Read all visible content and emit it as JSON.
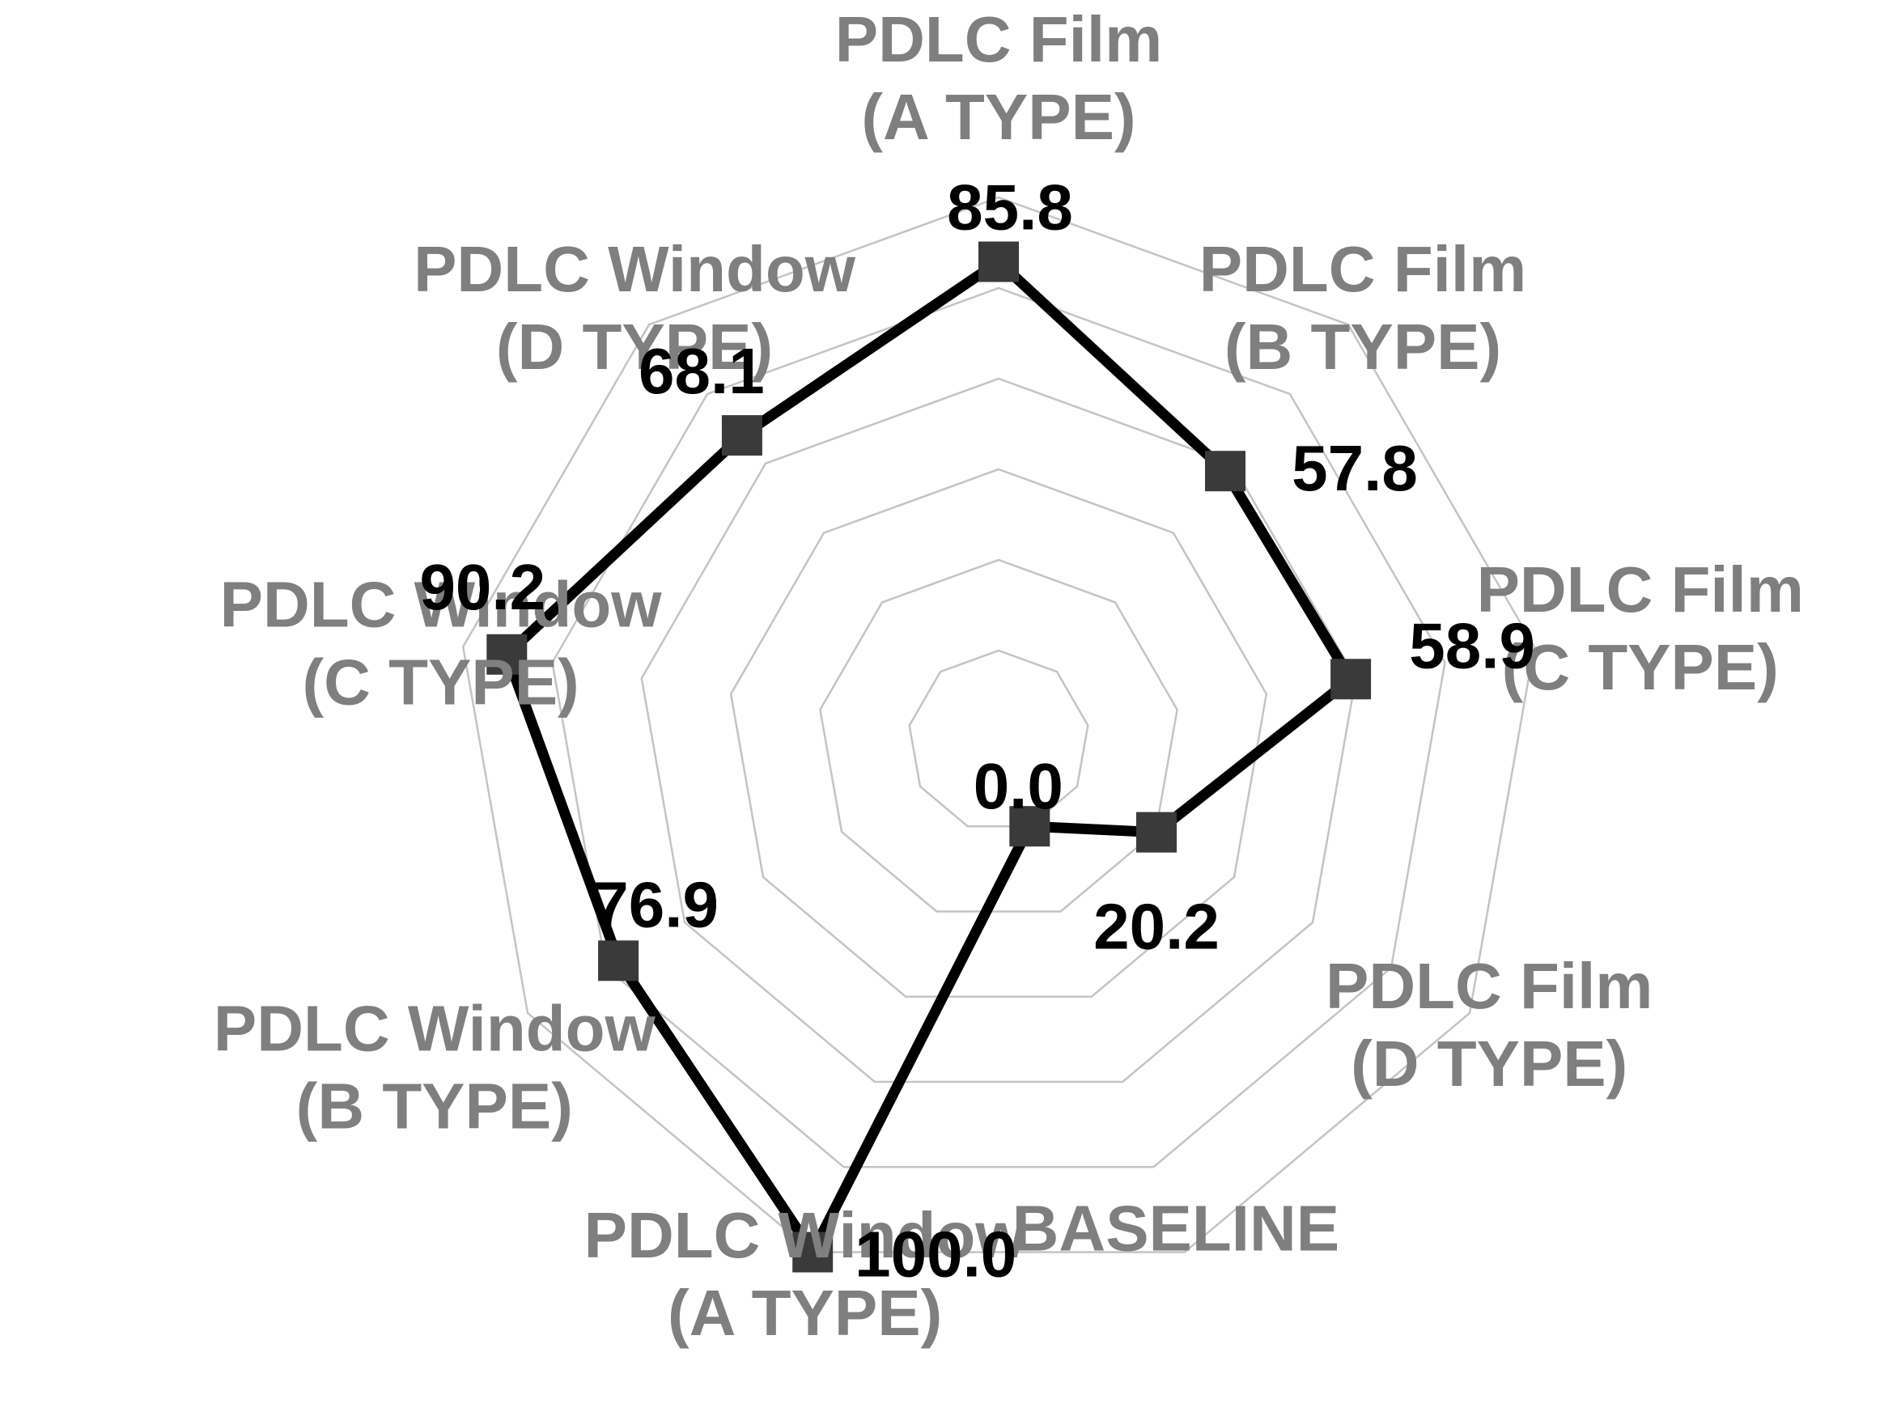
{
  "chart_data": {
    "type": "radar",
    "title": "",
    "categories": [
      [
        "PDLC Film",
        "(A TYPE)"
      ],
      [
        "PDLC Film",
        "(B TYPE)"
      ],
      [
        "PDLC Film",
        "(C TYPE)"
      ],
      [
        "PDLC Film",
        "(D TYPE)"
      ],
      [
        "BASELINE"
      ],
      [
        "PDLC Window",
        "(A TYPE)"
      ],
      [
        "PDLC Window",
        "(B TYPE)"
      ],
      [
        "PDLC Window",
        "(C TYPE)"
      ],
      [
        "PDLC Window",
        "(D TYPE)"
      ]
    ],
    "series": [
      {
        "values": [
          85.8,
          57.8,
          58.9,
          20.2,
          0.0,
          100.0,
          76.9,
          90.2,
          68.1
        ],
        "labels": [
          "85.8",
          "57.8",
          "58.9",
          "20.2",
          "0.0",
          "100.0",
          "76.9",
          "90.2",
          "68.1"
        ]
      }
    ],
    "rlim": [
      -20,
      100
    ],
    "rings": 6,
    "grid": true,
    "legend": "none",
    "colors": {
      "series_line": "#000000",
      "marker": "#3a3a3a",
      "grid": "#c4c4c4",
      "category_label": "#7f7f7f",
      "value_label": "#000000"
    }
  }
}
